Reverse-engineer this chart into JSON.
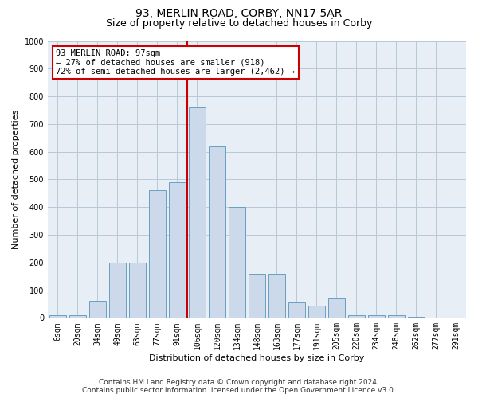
{
  "title": "93, MERLIN ROAD, CORBY, NN17 5AR",
  "subtitle": "Size of property relative to detached houses in Corby",
  "xlabel": "Distribution of detached houses by size in Corby",
  "ylabel": "Number of detached properties",
  "categories": [
    "6sqm",
    "20sqm",
    "34sqm",
    "49sqm",
    "63sqm",
    "77sqm",
    "91sqm",
    "106sqm",
    "120sqm",
    "134sqm",
    "148sqm",
    "163sqm",
    "177sqm",
    "191sqm",
    "205sqm",
    "220sqm",
    "234sqm",
    "248sqm",
    "262sqm",
    "277sqm",
    "291sqm"
  ],
  "values": [
    10,
    10,
    60,
    200,
    200,
    460,
    490,
    760,
    620,
    400,
    160,
    160,
    55,
    45,
    70,
    10,
    10,
    10,
    5,
    2,
    2
  ],
  "bar_color": "#ccd9ea",
  "bar_edge_color": "#6a9fc0",
  "vline_color": "#cc0000",
  "vline_pos": 6.5,
  "annotation_text": "93 MERLIN ROAD: 97sqm\n← 27% of detached houses are smaller (918)\n72% of semi-detached houses are larger (2,462) →",
  "annotation_box_color": "#ffffff",
  "annotation_box_edge_color": "#cc0000",
  "ylim": [
    0,
    1000
  ],
  "yticks": [
    0,
    100,
    200,
    300,
    400,
    500,
    600,
    700,
    800,
    900,
    1000
  ],
  "footer_line1": "Contains HM Land Registry data © Crown copyright and database right 2024.",
  "footer_line2": "Contains public sector information licensed under the Open Government Licence v3.0.",
  "bg_color": "#ffffff",
  "plot_bg_color": "#e8eef5",
  "grid_color": "#b8c8d8",
  "title_fontsize": 10,
  "subtitle_fontsize": 9,
  "axis_label_fontsize": 8,
  "tick_fontsize": 7,
  "annotation_fontsize": 7.5,
  "footer_fontsize": 6.5
}
